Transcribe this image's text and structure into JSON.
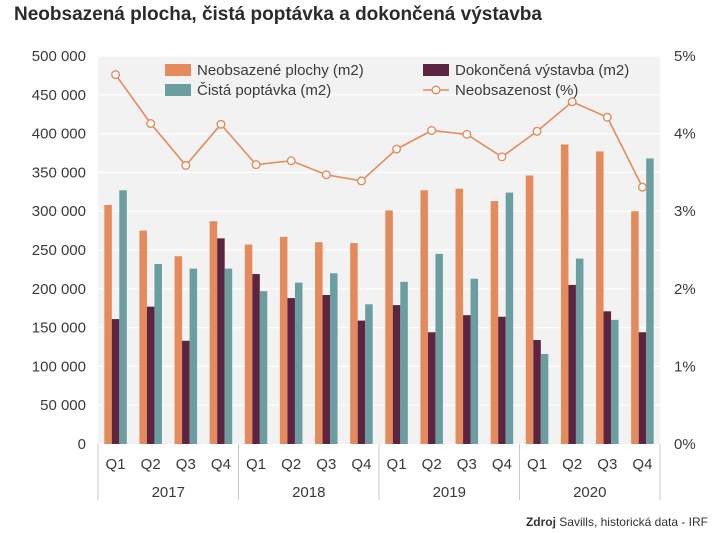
{
  "page": {
    "title": "Neobsazená plocha, čistá poptávka a dokončená výstavba",
    "source_label": "Zdroj",
    "source_text": "Savills, historická data - IRF"
  },
  "chart_data": {
    "type": "bar",
    "title": "Neobsazená plocha, čistá poptávka a dokončená výstavba",
    "categories": [
      "Q1",
      "Q2",
      "Q3",
      "Q4",
      "Q1",
      "Q2",
      "Q3",
      "Q4",
      "Q1",
      "Q2",
      "Q3",
      "Q4",
      "Q1",
      "Q2",
      "Q3",
      "Q4"
    ],
    "groups": [
      {
        "label": "2017",
        "span": 4
      },
      {
        "label": "2018",
        "span": 4
      },
      {
        "label": "2019",
        "span": 4
      },
      {
        "label": "2020",
        "span": 4
      }
    ],
    "series": [
      {
        "name": "Neobsazené plochy (m2)",
        "kind": "bar",
        "axis": "left",
        "color": "#e58a5b",
        "values": [
          308000,
          275000,
          242000,
          287000,
          257000,
          267000,
          260000,
          259000,
          301000,
          327000,
          329000,
          313000,
          346000,
          386000,
          377000,
          300000
        ]
      },
      {
        "name": "Dokončená výstavba (m2)",
        "kind": "bar",
        "axis": "left",
        "color": "#5c2440",
        "values": [
          161000,
          177000,
          133000,
          265000,
          219000,
          188000,
          192000,
          159000,
          179000,
          144000,
          166000,
          164000,
          134000,
          205000,
          171000,
          144000
        ]
      },
      {
        "name": "Čistá poptávka (m2)",
        "kind": "bar",
        "axis": "left",
        "color": "#6b9ea0",
        "values": [
          327000,
          232000,
          226000,
          226000,
          197000,
          208000,
          220000,
          180000,
          209000,
          245000,
          213000,
          324000,
          116000,
          239000,
          160000,
          368000
        ]
      },
      {
        "name": "Neobsazenost (%)",
        "kind": "line",
        "axis": "right",
        "color": "#e58a5b",
        "values": [
          4.76,
          4.13,
          3.59,
          4.12,
          3.6,
          3.65,
          3.47,
          3.39,
          3.8,
          4.04,
          3.99,
          3.7,
          4.03,
          4.41,
          4.21,
          3.31
        ]
      }
    ],
    "legend_order": [
      0,
      1,
      2,
      3
    ],
    "legend_position": "top",
    "left_axis": {
      "min": 0,
      "max": 500000,
      "ticks": [
        0,
        50000,
        100000,
        150000,
        200000,
        250000,
        300000,
        350000,
        400000,
        450000,
        500000
      ],
      "tick_labels": [
        "0",
        "50 000",
        "100 000",
        "150 000",
        "200 000",
        "250 000",
        "300 000",
        "350 000",
        "400 000",
        "450 000",
        "500 000"
      ]
    },
    "right_axis": {
      "min": 0,
      "max": 5,
      "ticks": [
        0,
        1,
        2,
        3,
        4,
        5
      ],
      "tick_labels": [
        "0%",
        "1%",
        "2%",
        "3%",
        "4%",
        "5%"
      ]
    },
    "plot_background": "#f2f2f2",
    "grid": true,
    "xlabel": "",
    "ylabel": ""
  }
}
